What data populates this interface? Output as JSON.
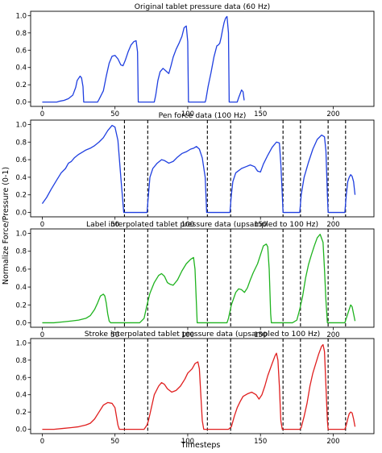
{
  "figure": {
    "ylabel": "Normalize Force/Pressure (0-1)",
    "xlabel": "Timesteps"
  },
  "chart_data": [
    {
      "type": "line",
      "title": "Original tablet pressure data (60 Hz)",
      "xlim": [
        -8,
        228
      ],
      "ylim": [
        -0.05,
        1.05
      ],
      "xticks": [
        0,
        50,
        100,
        150,
        200
      ],
      "yticks": [
        0.0,
        0.2,
        0.4,
        0.6,
        0.8,
        1.0
      ],
      "grid": false,
      "color": "#1f3fe0",
      "dividers": [],
      "points": [
        [
          0,
          0
        ],
        [
          5,
          0
        ],
        [
          10,
          0
        ],
        [
          12,
          0.01
        ],
        [
          15,
          0.02
        ],
        [
          18,
          0.04
        ],
        [
          21,
          0.08
        ],
        [
          23,
          0.17
        ],
        [
          24,
          0.25
        ],
        [
          26,
          0.3
        ],
        [
          27,
          0.28
        ],
        [
          28,
          0.18
        ],
        [
          28.5,
          0
        ],
        [
          33,
          0
        ],
        [
          38,
          0
        ],
        [
          39,
          0.03
        ],
        [
          42,
          0.13
        ],
        [
          44,
          0.3
        ],
        [
          46,
          0.45
        ],
        [
          48,
          0.53
        ],
        [
          50,
          0.54
        ],
        [
          52,
          0.5
        ],
        [
          54,
          0.43
        ],
        [
          55.5,
          0.42
        ],
        [
          57,
          0.48
        ],
        [
          59,
          0.58
        ],
        [
          61,
          0.66
        ],
        [
          63,
          0.7
        ],
        [
          64.5,
          0.71
        ],
        [
          65.5,
          0.58
        ],
        [
          66,
          0
        ],
        [
          72,
          0
        ],
        [
          77,
          0
        ],
        [
          78,
          0.08
        ],
        [
          79.5,
          0.25
        ],
        [
          81,
          0.35
        ],
        [
          83,
          0.39
        ],
        [
          85,
          0.36
        ],
        [
          87,
          0.33
        ],
        [
          88.5,
          0.42
        ],
        [
          90,
          0.52
        ],
        [
          92,
          0.61
        ],
        [
          94,
          0.68
        ],
        [
          96,
          0.76
        ],
        [
          97.5,
          0.86
        ],
        [
          99,
          0.88
        ],
        [
          100,
          0.7
        ],
        [
          100.5,
          0
        ],
        [
          106,
          0
        ],
        [
          112,
          0
        ],
        [
          112.5,
          0.03
        ],
        [
          114,
          0.18
        ],
        [
          116,
          0.34
        ],
        [
          118,
          0.52
        ],
        [
          120,
          0.65
        ],
        [
          121,
          0.66
        ],
        [
          122,
          0.68
        ],
        [
          123,
          0.75
        ],
        [
          124,
          0.84
        ],
        [
          125,
          0.92
        ],
        [
          126,
          0.97
        ],
        [
          127,
          0.99
        ],
        [
          128,
          0.8
        ],
        [
          128.5,
          0
        ],
        [
          132,
          0
        ],
        [
          134,
          0
        ],
        [
          135,
          0.05
        ],
        [
          137,
          0.14
        ],
        [
          138,
          0.12
        ],
        [
          138.8,
          0.02
        ]
      ]
    },
    {
      "type": "line",
      "title": "Pen force data (100 Hz)",
      "xlim": [
        -8,
        228
      ],
      "ylim": [
        -0.05,
        1.05
      ],
      "xticks": [
        0,
        50,
        100,
        150,
        200
      ],
      "yticks": [
        0.0,
        0.2,
        0.4,
        0.6,
        0.8,
        1.0
      ],
      "grid": false,
      "color": "#1f3fe0",
      "dividers": [
        56.5,
        72.5,
        113.5,
        129.5,
        165.5,
        177.5,
        196.5,
        208.5
      ],
      "points": [
        [
          0,
          0.1
        ],
        [
          3,
          0.17
        ],
        [
          6,
          0.26
        ],
        [
          10,
          0.37
        ],
        [
          13,
          0.45
        ],
        [
          16,
          0.5
        ],
        [
          18,
          0.56
        ],
        [
          20,
          0.58
        ],
        [
          22,
          0.62
        ],
        [
          25,
          0.66
        ],
        [
          28,
          0.69
        ],
        [
          30,
          0.71
        ],
        [
          33,
          0.73
        ],
        [
          36,
          0.76
        ],
        [
          39,
          0.8
        ],
        [
          42,
          0.85
        ],
        [
          45,
          0.93
        ],
        [
          48,
          0.99
        ],
        [
          50,
          0.97
        ],
        [
          52,
          0.82
        ],
        [
          54,
          0.4
        ],
        [
          55,
          0.2
        ],
        [
          56,
          0
        ],
        [
          60,
          0
        ],
        [
          66,
          0
        ],
        [
          72,
          0
        ],
        [
          73,
          0.2
        ],
        [
          74,
          0.4
        ],
        [
          76,
          0.5
        ],
        [
          79,
          0.56
        ],
        [
          82,
          0.6
        ],
        [
          84,
          0.59
        ],
        [
          87,
          0.56
        ],
        [
          90,
          0.58
        ],
        [
          93,
          0.63
        ],
        [
          96,
          0.67
        ],
        [
          99,
          0.69
        ],
        [
          102,
          0.72
        ],
        [
          104,
          0.73
        ],
        [
          106,
          0.75
        ],
        [
          108,
          0.72
        ],
        [
          110,
          0.62
        ],
        [
          112,
          0.4
        ],
        [
          113,
          0
        ],
        [
          118,
          0
        ],
        [
          125,
          0
        ],
        [
          129,
          0
        ],
        [
          130,
          0.2
        ],
        [
          131,
          0.35
        ],
        [
          133,
          0.45
        ],
        [
          137,
          0.5
        ],
        [
          140,
          0.52
        ],
        [
          143,
          0.54
        ],
        [
          146,
          0.52
        ],
        [
          148,
          0.47
        ],
        [
          150,
          0.46
        ],
        [
          152,
          0.55
        ],
        [
          155,
          0.65
        ],
        [
          158,
          0.74
        ],
        [
          161,
          0.8
        ],
        [
          163,
          0.79
        ],
        [
          164,
          0.55
        ],
        [
          165,
          0.2
        ],
        [
          165.5,
          0
        ],
        [
          170,
          0
        ],
        [
          177,
          0
        ],
        [
          178,
          0.2
        ],
        [
          180,
          0.4
        ],
        [
          183,
          0.57
        ],
        [
          186,
          0.72
        ],
        [
          189,
          0.83
        ],
        [
          192,
          0.88
        ],
        [
          194,
          0.86
        ],
        [
          195,
          0.7
        ],
        [
          196,
          0.2
        ],
        [
          196.5,
          0
        ],
        [
          202,
          0
        ],
        [
          208,
          0
        ],
        [
          209,
          0.2
        ],
        [
          210,
          0.35
        ],
        [
          211,
          0.4
        ],
        [
          212,
          0.43
        ],
        [
          213,
          0.41
        ],
        [
          214,
          0.35
        ],
        [
          215,
          0.2
        ]
      ]
    },
    {
      "type": "line",
      "title": "Label interpolated tablet pressure data (upsampled to 100 Hz)",
      "xlim": [
        -8,
        228
      ],
      "ylim": [
        -0.05,
        1.05
      ],
      "xticks": [
        0,
        50,
        100,
        150,
        200
      ],
      "yticks": [
        0.0,
        0.2,
        0.4,
        0.6,
        0.8,
        1.0
      ],
      "grid": false,
      "color": "#1fb31f",
      "dividers": [
        56.5,
        72.5,
        113.5,
        129.5,
        165.5,
        177.5,
        196.5,
        208.5
      ],
      "points": [
        [
          0,
          0
        ],
        [
          8,
          0
        ],
        [
          14,
          0.01
        ],
        [
          20,
          0.02
        ],
        [
          25,
          0.03
        ],
        [
          30,
          0.05
        ],
        [
          33,
          0.08
        ],
        [
          36,
          0.15
        ],
        [
          38,
          0.22
        ],
        [
          40,
          0.3
        ],
        [
          42,
          0.32
        ],
        [
          43,
          0.3
        ],
        [
          44,
          0.22
        ],
        [
          45,
          0.1
        ],
        [
          46,
          0.02
        ],
        [
          47,
          0
        ],
        [
          52,
          0
        ],
        [
          57,
          0
        ],
        [
          62,
          0
        ],
        [
          67,
          0
        ],
        [
          70,
          0.05
        ],
        [
          72,
          0.2
        ],
        [
          74,
          0.33
        ],
        [
          77,
          0.45
        ],
        [
          80,
          0.53
        ],
        [
          82,
          0.55
        ],
        [
          84,
          0.52
        ],
        [
          86,
          0.45
        ],
        [
          88,
          0.43
        ],
        [
          90,
          0.42
        ],
        [
          93,
          0.48
        ],
        [
          96,
          0.58
        ],
        [
          99,
          0.66
        ],
        [
          102,
          0.71
        ],
        [
          104,
          0.73
        ],
        [
          105,
          0.6
        ],
        [
          106,
          0.2
        ],
        [
          106.5,
          0
        ],
        [
          110,
          0
        ],
        [
          118,
          0
        ],
        [
          125,
          0
        ],
        [
          127,
          0
        ],
        [
          128,
          0.05
        ],
        [
          130,
          0.2
        ],
        [
          133,
          0.34
        ],
        [
          135,
          0.38
        ],
        [
          137,
          0.37
        ],
        [
          139,
          0.34
        ],
        [
          141,
          0.39
        ],
        [
          143,
          0.48
        ],
        [
          145,
          0.56
        ],
        [
          148,
          0.66
        ],
        [
          150,
          0.76
        ],
        [
          152,
          0.86
        ],
        [
          154,
          0.88
        ],
        [
          155,
          0.85
        ],
        [
          156,
          0.6
        ],
        [
          157,
          0.1
        ],
        [
          157.5,
          0
        ],
        [
          162,
          0
        ],
        [
          167,
          0
        ],
        [
          172,
          0
        ],
        [
          175,
          0.03
        ],
        [
          177,
          0.15
        ],
        [
          179,
          0.3
        ],
        [
          181,
          0.5
        ],
        [
          183,
          0.65
        ],
        [
          185,
          0.76
        ],
        [
          187,
          0.86
        ],
        [
          189,
          0.95
        ],
        [
          191,
          0.99
        ],
        [
          193,
          0.9
        ],
        [
          194,
          0.6
        ],
        [
          195,
          0.25
        ],
        [
          196,
          0
        ],
        [
          202,
          0
        ],
        [
          208,
          0
        ],
        [
          209,
          0.05
        ],
        [
          211,
          0.15
        ],
        [
          212,
          0.2
        ],
        [
          213,
          0.18
        ],
        [
          214,
          0.1
        ],
        [
          215,
          0.02
        ]
      ]
    },
    {
      "type": "line",
      "title": "Stroke interpolated tablet pressure data (upsampled to 100 Hz)",
      "xlim": [
        -8,
        228
      ],
      "ylim": [
        -0.05,
        1.05
      ],
      "xticks": [
        0,
        50,
        100,
        150,
        200
      ],
      "yticks": [
        0.0,
        0.2,
        0.4,
        0.6,
        0.8,
        1.0
      ],
      "grid": false,
      "color": "#e01f1f",
      "dividers": [
        56.5,
        72.5,
        113.5,
        129.5,
        165.5,
        177.5,
        196.5,
        208.5
      ],
      "points": [
        [
          0,
          0
        ],
        [
          8,
          0
        ],
        [
          14,
          0.01
        ],
        [
          20,
          0.02
        ],
        [
          25,
          0.03
        ],
        [
          30,
          0.05
        ],
        [
          33,
          0.07
        ],
        [
          36,
          0.12
        ],
        [
          39,
          0.2
        ],
        [
          42,
          0.28
        ],
        [
          45,
          0.31
        ],
        [
          48,
          0.3
        ],
        [
          50,
          0.25
        ],
        [
          51,
          0.15
        ],
        [
          52,
          0.05
        ],
        [
          53,
          0
        ],
        [
          56,
          0
        ],
        [
          62,
          0
        ],
        [
          68,
          0
        ],
        [
          70,
          0
        ],
        [
          72,
          0.05
        ],
        [
          73,
          0.1
        ],
        [
          75,
          0.25
        ],
        [
          77,
          0.4
        ],
        [
          80,
          0.5
        ],
        [
          82,
          0.54
        ],
        [
          84,
          0.52
        ],
        [
          86,
          0.47
        ],
        [
          89,
          0.43
        ],
        [
          92,
          0.45
        ],
        [
          95,
          0.5
        ],
        [
          98,
          0.58
        ],
        [
          100,
          0.65
        ],
        [
          103,
          0.7
        ],
        [
          105,
          0.76
        ],
        [
          107,
          0.78
        ],
        [
          108,
          0.7
        ],
        [
          109,
          0.4
        ],
        [
          110,
          0.1
        ],
        [
          111,
          0
        ],
        [
          116,
          0
        ],
        [
          123,
          0
        ],
        [
          128,
          0
        ],
        [
          130,
          0.03
        ],
        [
          132,
          0.15
        ],
        [
          134,
          0.25
        ],
        [
          136,
          0.32
        ],
        [
          138,
          0.38
        ],
        [
          141,
          0.41
        ],
        [
          144,
          0.43
        ],
        [
          147,
          0.4
        ],
        [
          149,
          0.35
        ],
        [
          151,
          0.4
        ],
        [
          153,
          0.5
        ],
        [
          155,
          0.62
        ],
        [
          158,
          0.76
        ],
        [
          160,
          0.85
        ],
        [
          161,
          0.88
        ],
        [
          162,
          0.8
        ],
        [
          163,
          0.5
        ],
        [
          164,
          0.1
        ],
        [
          165,
          0
        ],
        [
          170,
          0
        ],
        [
          175,
          0
        ],
        [
          177,
          0
        ],
        [
          178,
          0.02
        ],
        [
          180,
          0.15
        ],
        [
          182,
          0.3
        ],
        [
          184,
          0.5
        ],
        [
          186,
          0.65
        ],
        [
          188,
          0.76
        ],
        [
          190,
          0.87
        ],
        [
          192,
          0.96
        ],
        [
          193,
          0.98
        ],
        [
          194,
          0.9
        ],
        [
          195,
          0.5
        ],
        [
          196,
          0.1
        ],
        [
          196.5,
          0
        ],
        [
          202,
          0
        ],
        [
          208,
          0
        ],
        [
          209,
          0.05
        ],
        [
          210,
          0.12
        ],
        [
          211,
          0.18
        ],
        [
          212,
          0.2
        ],
        [
          213,
          0.19
        ],
        [
          214,
          0.12
        ],
        [
          215,
          0.03
        ]
      ]
    }
  ]
}
